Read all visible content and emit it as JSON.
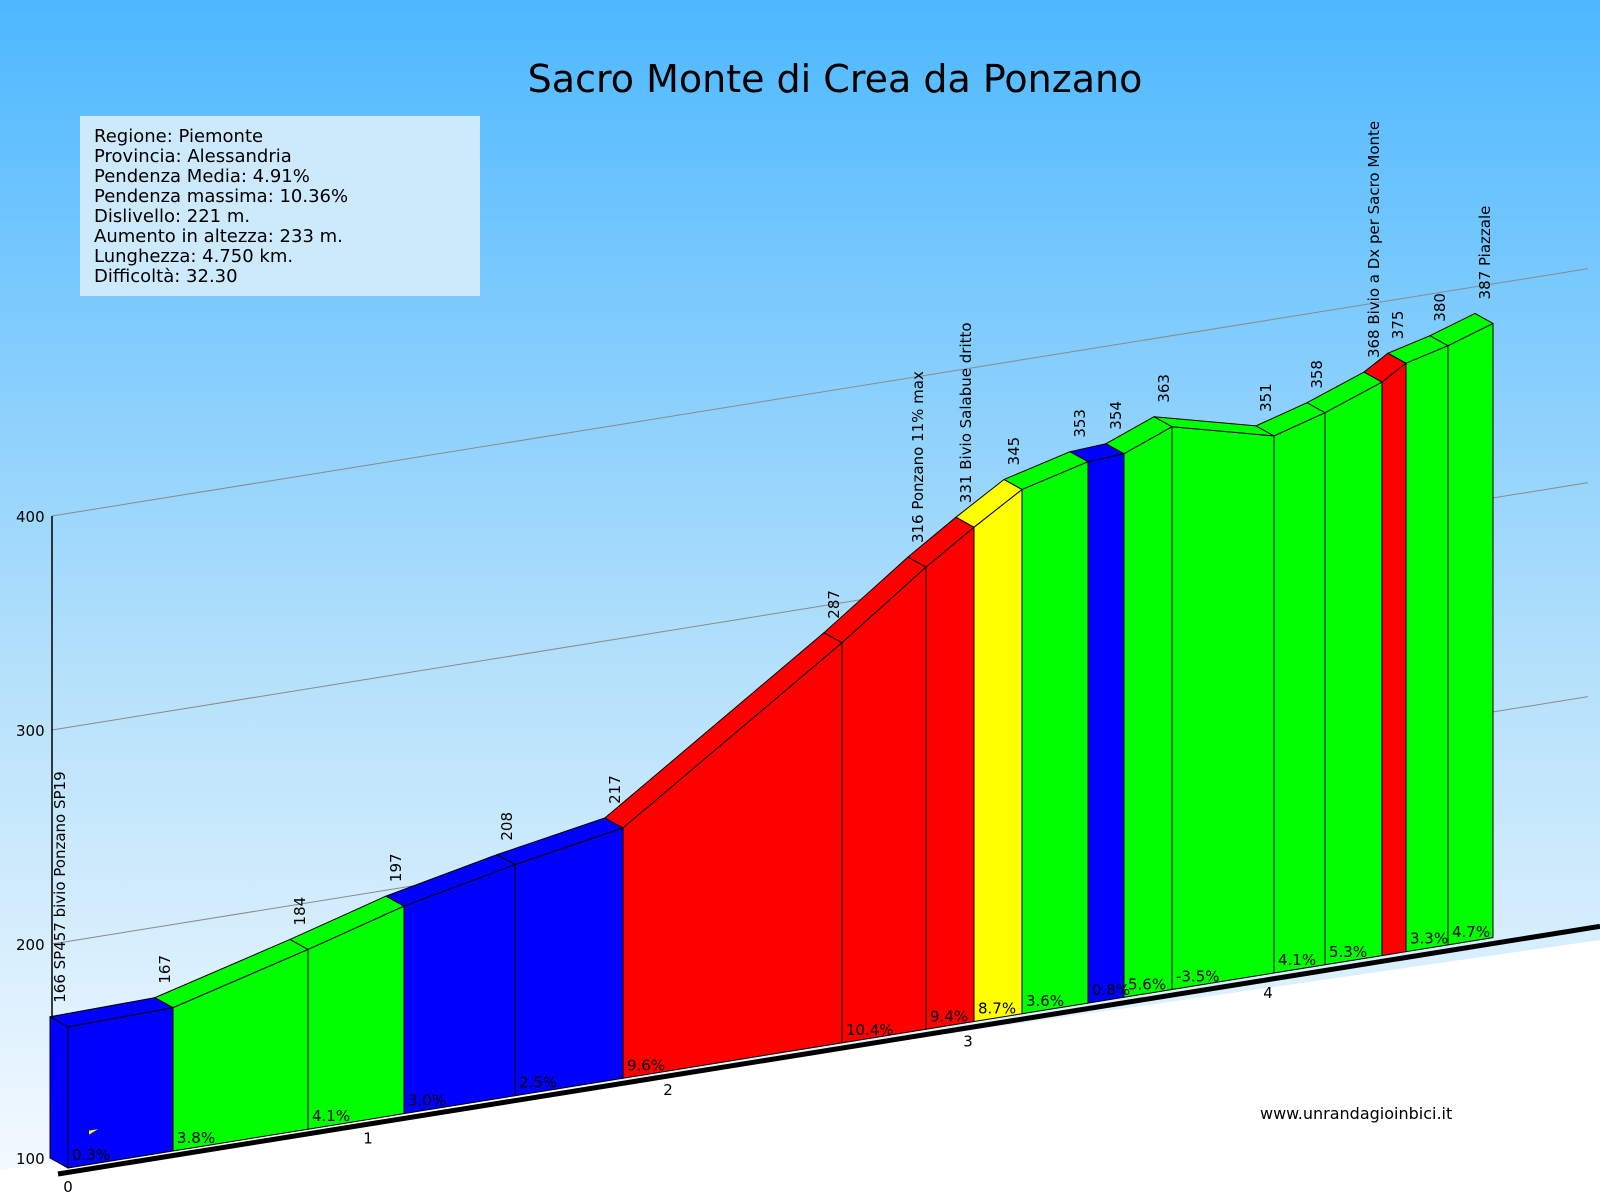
{
  "chart_data": {
    "type": "area",
    "title": "Sacro Monte di Crea da Ponzano",
    "xlabel": "",
    "ylabel": "",
    "ylim": [
      100,
      400
    ],
    "yticks": [
      100,
      200,
      300,
      400
    ],
    "xticks": [
      "0",
      "1",
      "2",
      "3",
      "4"
    ],
    "xlim": [
      0,
      4.75
    ],
    "grid": true,
    "info": [
      "Regione: Piemonte",
      "Provincia: Alessandria",
      "Pendenza Media: 4.91%",
      "Pendenza massima: 10.36%",
      "Dislivello: 221 m.",
      "Aumento in altezza: 233 m.",
      "Lunghezza: 4.750 km.",
      "Difficoltà: 32.30"
    ],
    "points": [
      {
        "km": 0.0,
        "alt": 166,
        "label": "166 SP457 bivio Ponzano SP19"
      },
      {
        "km": 0.35,
        "alt": 167,
        "label": "167"
      },
      {
        "km": 0.8,
        "alt": 184,
        "label": "184"
      },
      {
        "km": 1.12,
        "alt": 197,
        "label": "197"
      },
      {
        "km": 1.49,
        "alt": 208,
        "label": "208"
      },
      {
        "km": 1.85,
        "alt": 217,
        "label": "217"
      },
      {
        "km": 2.58,
        "alt": 287,
        "label": "287"
      },
      {
        "km": 2.86,
        "alt": 316,
        "label": "316 Ponzano 11% max"
      },
      {
        "km": 3.02,
        "alt": 331,
        "label": "331 Bivio Salabue dritto"
      },
      {
        "km": 3.18,
        "alt": 345,
        "label": "345"
      },
      {
        "km": 3.4,
        "alt": 353,
        "label": "353"
      },
      {
        "km": 3.52,
        "alt": 354,
        "label": "354"
      },
      {
        "km": 3.68,
        "alt": 363,
        "label": "363"
      },
      {
        "km": 4.02,
        "alt": 351,
        "label": "351"
      },
      {
        "km": 4.19,
        "alt": 358,
        "label": "358"
      },
      {
        "km": 4.38,
        "alt": 368,
        "label": "368 Bivio a Dx per Sacro Monte"
      },
      {
        "km": 4.46,
        "alt": 375,
        "label": "375"
      },
      {
        "km": 4.6,
        "alt": 380,
        "label": "380"
      },
      {
        "km": 4.75,
        "alt": 387,
        "label": "387 Piazzale"
      }
    ],
    "segments": [
      {
        "grade": "0.3%",
        "color": "#0000ff"
      },
      {
        "grade": "3.8%",
        "color": "#00ff00"
      },
      {
        "grade": "4.1%",
        "color": "#00ff00"
      },
      {
        "grade": "3.0%",
        "color": "#0000ff"
      },
      {
        "grade": "2.5%",
        "color": "#0000ff"
      },
      {
        "grade": "9.6%",
        "color": "#ff0000"
      },
      {
        "grade": "10.4%",
        "color": "#ff0000"
      },
      {
        "grade": "9.4%",
        "color": "#ff0000"
      },
      {
        "grade": "8.7%",
        "color": "#ffff00"
      },
      {
        "grade": "3.6%",
        "color": "#00ff00"
      },
      {
        "grade": "0.8%",
        "color": "#0000ff"
      },
      {
        "grade": "5.6%",
        "color": "#00ff00"
      },
      {
        "grade": "-3.5%",
        "color": "#00ff00"
      },
      {
        "grade": "4.1%",
        "color": "#00ff00"
      },
      {
        "grade": "5.3%",
        "color": "#00ff00"
      },
      {
        "grade": "",
        "color": "#ff0000"
      },
      {
        "grade": "3.3%",
        "color": "#00ff00"
      },
      {
        "grade": "4.7%",
        "color": "#00ff00"
      }
    ],
    "website": "www.unrandagioinbici.it"
  }
}
